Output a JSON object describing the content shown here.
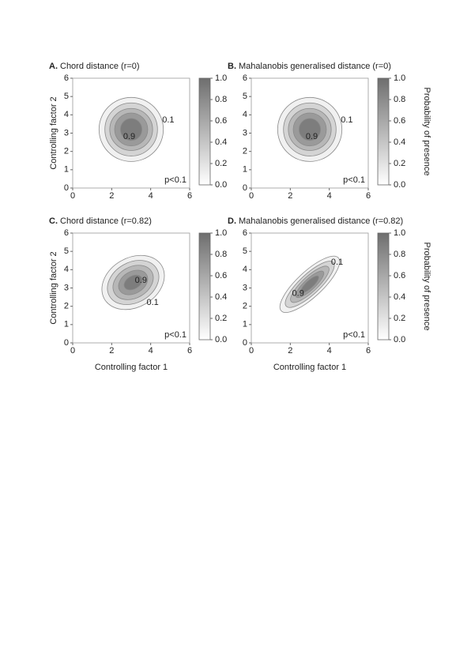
{
  "chart_data": [
    {
      "type": "contour",
      "panel_label": "A.",
      "title": "Chord distance (r=0)",
      "ylabel": "Controlling factor 2",
      "xlim": [
        0,
        6
      ],
      "ylim": [
        0,
        6
      ],
      "xticks": [
        0,
        2,
        4,
        6
      ],
      "yticks": [
        0,
        1,
        2,
        3,
        4,
        5,
        6
      ],
      "colorbar": {
        "lim": [
          0,
          1
        ],
        "colors": [
          "#ffffff",
          "#6e6e6e"
        ],
        "ticks": [
          {
            "value": 0,
            "label": "0.0"
          },
          0.2,
          0.4,
          0.6,
          0.8,
          {
            "value": 1,
            "label": "1.0"
          }
        ]
      },
      "line_color": "#8a8a8a",
      "contours": [
        {
          "level": 0.1,
          "cx": 3,
          "cy": 3.2,
          "rx": 1.65,
          "ry": 1.75,
          "rotation": 0
        },
        {
          "level": 0.3,
          "cx": 3,
          "cy": 3.2,
          "rx": 1.35,
          "ry": 1.45,
          "rotation": 0
        },
        {
          "level": 0.5,
          "cx": 3,
          "cy": 3.2,
          "rx": 1.1,
          "ry": 1.15,
          "rotation": 0
        },
        {
          "level": 0.7,
          "cx": 3,
          "cy": 3.2,
          "rx": 0.85,
          "ry": 0.9,
          "rotation": 0
        },
        {
          "level": 0.9,
          "cx": 3,
          "cy": 3.2,
          "rx": 0.55,
          "ry": 0.6,
          "rotation": 0
        }
      ],
      "annotations": [
        {
          "text": "0.1",
          "x": 4.9,
          "y": 3.7
        },
        {
          "text": "0.9",
          "x": 2.9,
          "y": 2.8
        }
      ],
      "p_label": "p<0.1"
    },
    {
      "type": "contour",
      "panel_label": "B.",
      "title": "Mahalanobis generalised distance (r=0)",
      "xlim": [
        0,
        6
      ],
      "ylim": [
        0,
        6
      ],
      "xticks": [
        0,
        2,
        4,
        6
      ],
      "yticks": [
        0,
        1,
        2,
        3,
        4,
        5,
        6
      ],
      "colorbar": {
        "lim": [
          0,
          1
        ],
        "colors": [
          "#ffffff",
          "#6e6e6e"
        ],
        "label": "Probability of presence",
        "ticks": [
          {
            "value": 0,
            "label": "0.0"
          },
          0.2,
          0.4,
          0.6,
          0.8,
          {
            "value": 1,
            "label": "1.0"
          }
        ]
      },
      "line_color": "#8a8a8a",
      "contours": [
        {
          "level": 0.1,
          "cx": 3,
          "cy": 3.2,
          "rx": 1.65,
          "ry": 1.75,
          "rotation": 0
        },
        {
          "level": 0.3,
          "cx": 3,
          "cy": 3.2,
          "rx": 1.35,
          "ry": 1.45,
          "rotation": 0
        },
        {
          "level": 0.5,
          "cx": 3,
          "cy": 3.2,
          "rx": 1.1,
          "ry": 1.15,
          "rotation": 0
        },
        {
          "level": 0.7,
          "cx": 3,
          "cy": 3.2,
          "rx": 0.85,
          "ry": 0.9,
          "rotation": 0
        },
        {
          "level": 0.9,
          "cx": 3,
          "cy": 3.2,
          "rx": 0.55,
          "ry": 0.6,
          "rotation": 0
        }
      ],
      "annotations": [
        {
          "text": "0.1",
          "x": 4.9,
          "y": 3.7
        },
        {
          "text": "0.9",
          "x": 3.1,
          "y": 2.8
        }
      ],
      "p_label": "p<0.1"
    },
    {
      "type": "contour",
      "panel_label": "C.",
      "title": "Chord distance (r=0.82)",
      "xlabel": "Controlling factor 1",
      "ylabel": "Controlling factor 2",
      "xlim": [
        0,
        6
      ],
      "ylim": [
        0,
        6
      ],
      "xticks": [
        0,
        2,
        4,
        6
      ],
      "yticks": [
        0,
        1,
        2,
        3,
        4,
        5,
        6
      ],
      "colorbar": {
        "lim": [
          0,
          1
        ],
        "colors": [
          "#ffffff",
          "#6e6e6e"
        ],
        "ticks": [
          {
            "value": 0,
            "label": "0.0"
          },
          0.2,
          0.4,
          0.6,
          0.8,
          {
            "value": 1,
            "label": "1.0"
          }
        ]
      },
      "line_color": "#8a8a8a",
      "contours": [
        {
          "level": 0.1,
          "cx": 3.1,
          "cy": 3.3,
          "rx": 1.7,
          "ry": 1.35,
          "rotation": 30
        },
        {
          "level": 0.3,
          "cx": 3.1,
          "cy": 3.3,
          "rx": 1.4,
          "ry": 1.1,
          "rotation": 30
        },
        {
          "level": 0.5,
          "cx": 3.1,
          "cy": 3.3,
          "rx": 1.1,
          "ry": 0.85,
          "rotation": 30
        },
        {
          "level": 0.7,
          "cx": 3.1,
          "cy": 3.3,
          "rx": 0.8,
          "ry": 0.6,
          "rotation": 30
        },
        {
          "level": 0.9,
          "cx": 3.1,
          "cy": 3.3,
          "rx": 0.5,
          "ry": 0.35,
          "rotation": 30
        }
      ],
      "annotations": [
        {
          "text": "0.9",
          "x": 3.5,
          "y": 3.4
        },
        {
          "text": "0.1",
          "x": 4.1,
          "y": 2.2
        }
      ],
      "p_label": "p<0.1"
    },
    {
      "type": "contour",
      "panel_label": "D.",
      "title": "Mahalanobis generalised distance (r=0.82)",
      "xlabel": "Controlling factor 1",
      "xlim": [
        0,
        6
      ],
      "ylim": [
        0,
        6
      ],
      "xticks": [
        0,
        2,
        4,
        6
      ],
      "yticks": [
        0,
        1,
        2,
        3,
        4,
        5,
        6
      ],
      "colorbar": {
        "lim": [
          0,
          1
        ],
        "colors": [
          "#ffffff",
          "#6e6e6e"
        ],
        "label": "Probability of presence",
        "ticks": [
          {
            "value": 0,
            "label": "0.0"
          },
          0.2,
          0.4,
          0.6,
          0.8,
          {
            "value": 1,
            "label": "1.0"
          }
        ]
      },
      "line_color": "#8a8a8a",
      "contours": [
        {
          "level": 0.1,
          "cx": 3,
          "cy": 3.2,
          "rx": 2.0,
          "ry": 0.7,
          "rotation": 43
        },
        {
          "level": 0.3,
          "cx": 3,
          "cy": 3.2,
          "rx": 1.65,
          "ry": 0.55,
          "rotation": 43
        },
        {
          "level": 0.5,
          "cx": 3,
          "cy": 3.2,
          "rx": 1.3,
          "ry": 0.42,
          "rotation": 43
        },
        {
          "level": 0.7,
          "cx": 3,
          "cy": 3.2,
          "rx": 0.95,
          "ry": 0.3,
          "rotation": 43
        },
        {
          "level": 0.9,
          "cx": 3,
          "cy": 3.2,
          "rx": 0.6,
          "ry": 0.2,
          "rotation": 43
        }
      ],
      "annotations": [
        {
          "text": "0.1",
          "x": 4.4,
          "y": 4.4
        },
        {
          "text": "0.9",
          "x": 2.4,
          "y": 2.7
        }
      ],
      "p_label": "p<0.1"
    }
  ]
}
